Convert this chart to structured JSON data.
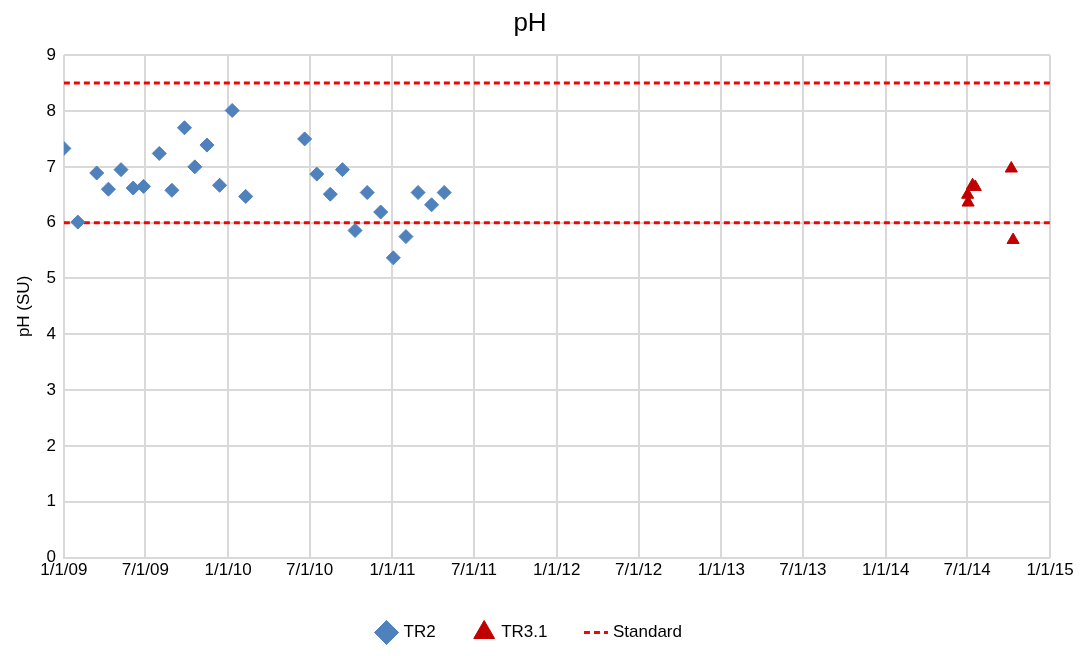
{
  "chart_data": {
    "type": "scatter",
    "title": "pH",
    "ylabel": "pH (SU)",
    "xlim": [
      "2009-01-01",
      "2015-01-01"
    ],
    "xticks": [
      {
        "value": "2009-01-01",
        "label": "1/1/09"
      },
      {
        "value": "2009-07-01",
        "label": "7/1/09"
      },
      {
        "value": "2010-01-01",
        "label": "1/1/10"
      },
      {
        "value": "2010-07-01",
        "label": "7/1/10"
      },
      {
        "value": "2011-01-01",
        "label": "1/1/11"
      },
      {
        "value": "2011-07-01",
        "label": "7/1/11"
      },
      {
        "value": "2012-01-01",
        "label": "1/1/12"
      },
      {
        "value": "2012-07-01",
        "label": "7/1/12"
      },
      {
        "value": "2013-01-01",
        "label": "1/1/13"
      },
      {
        "value": "2013-07-01",
        "label": "7/1/13"
      },
      {
        "value": "2014-01-01",
        "label": "1/1/14"
      },
      {
        "value": "2014-07-01",
        "label": "7/1/14"
      },
      {
        "value": "2015-01-01",
        "label": "1/1/15"
      }
    ],
    "ylim": [
      0,
      9
    ],
    "yticks": [
      0,
      1,
      2,
      3,
      4,
      5,
      6,
      7,
      8,
      9
    ],
    "grid": true,
    "legend": "bottom",
    "series": [
      {
        "name": "TR2",
        "color": "#4f81bd",
        "marker": "diamond",
        "x": [
          "2009-01-01",
          "2009-02-01",
          "2009-03-15",
          "2009-04-10",
          "2009-05-08",
          "2009-06-04",
          "2009-06-27",
          "2009-08-01",
          "2009-08-29",
          "2009-09-26",
          "2009-10-19",
          "2009-11-15",
          "2009-12-13",
          "2010-01-10",
          "2010-02-09",
          "2010-06-20",
          "2010-07-17",
          "2010-08-16",
          "2010-09-12",
          "2010-10-10",
          "2010-11-06",
          "2010-12-06",
          "2011-01-03",
          "2011-01-31",
          "2011-02-27",
          "2011-03-29",
          "2011-04-26"
        ],
        "values": [
          7.33,
          6.01,
          6.89,
          6.6,
          6.95,
          6.62,
          6.65,
          7.24,
          6.58,
          7.7,
          7.0,
          7.39,
          6.67,
          8.01,
          6.47,
          7.5,
          6.87,
          6.51,
          6.95,
          5.86,
          6.54,
          6.19,
          5.37,
          5.75,
          6.54,
          6.32,
          6.54
        ]
      },
      {
        "name": "TR3.1",
        "color": "#c00000",
        "marker": "triangle",
        "x": [
          "2014-07-02",
          "2014-07-03",
          "2014-07-13",
          "2014-07-19",
          "2014-10-07",
          "2014-10-11"
        ],
        "values": [
          6.5,
          6.36,
          6.67,
          6.64,
          6.97,
          5.69
        ]
      }
    ],
    "ref_lines": [
      {
        "axis": "y",
        "value": 8.5,
        "label": "Standard",
        "color": "#ff0000",
        "line_style": "dashed"
      },
      {
        "axis": "y",
        "value": 6,
        "color": "#ff0000",
        "line_style": "dashed"
      }
    ]
  }
}
